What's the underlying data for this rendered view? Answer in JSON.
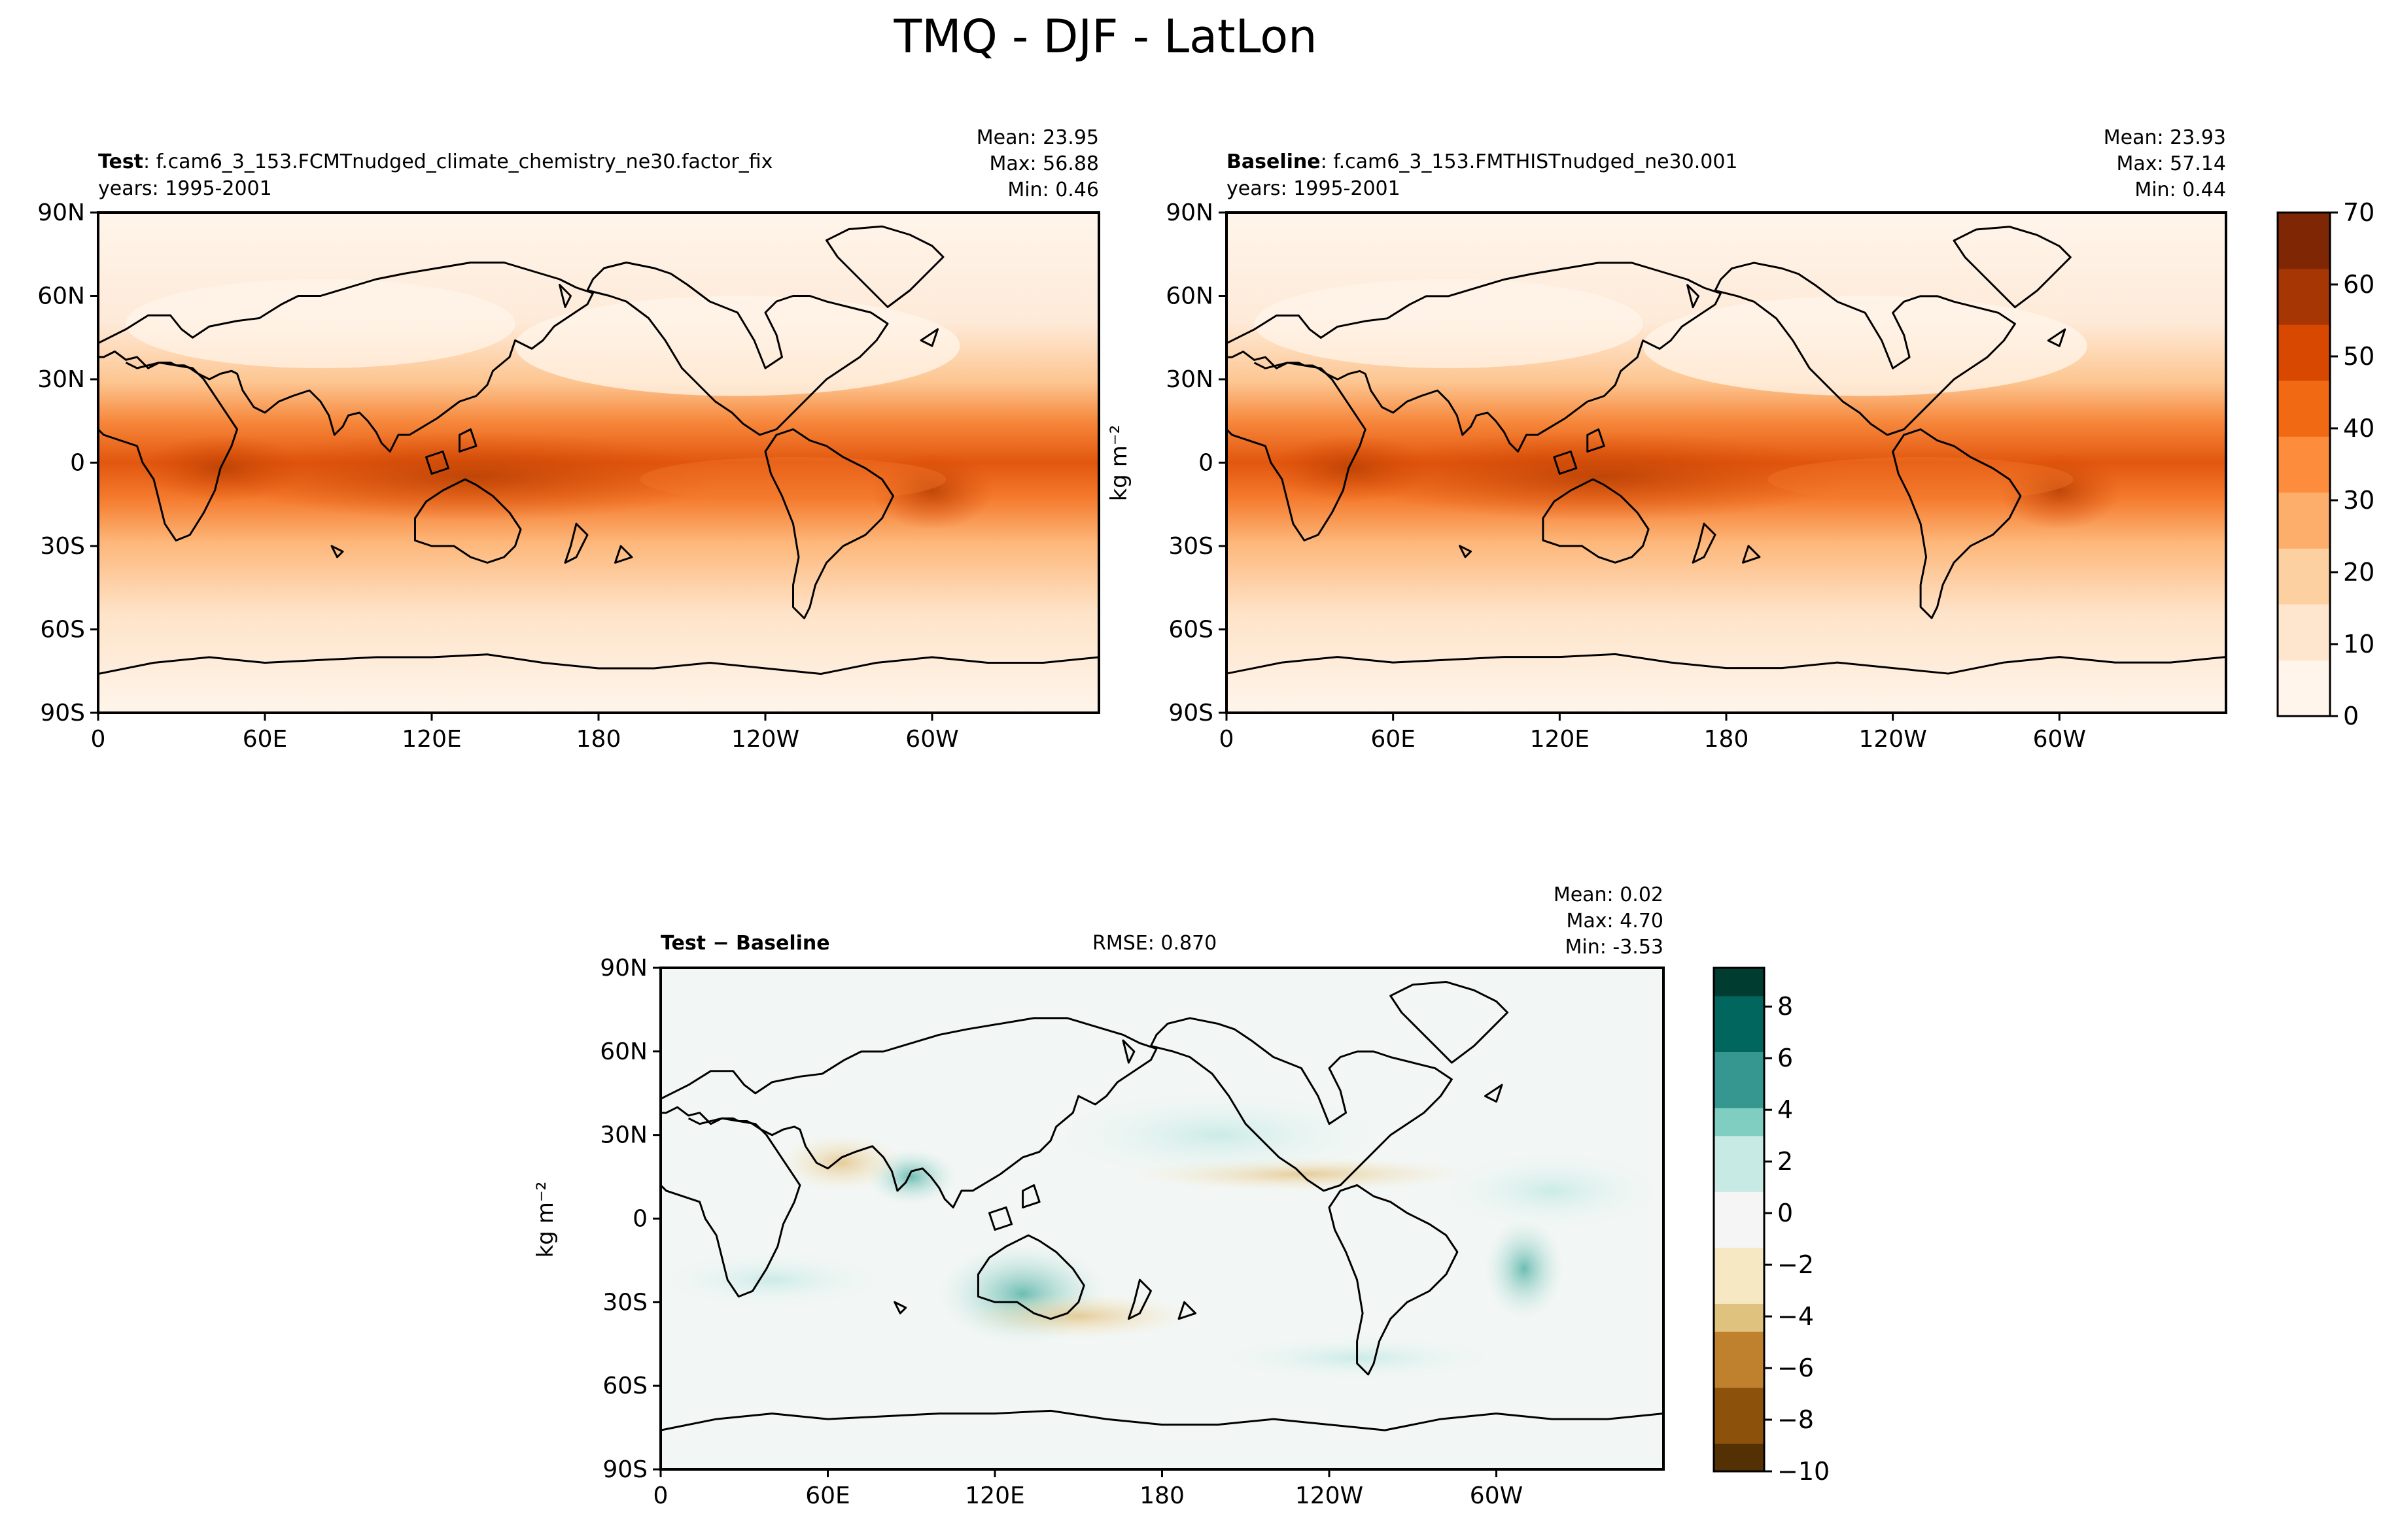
{
  "figure": {
    "title": "TMQ - DJF - LatLon"
  },
  "panels": [
    {
      "id": "test",
      "label_bold": "Test",
      "label_text": ": f.cam6_3_153.FCMTnudged_climate_chemistry_ne30.factor_fix",
      "years": "years: 1995-2001",
      "stats": {
        "mean": "Mean: 23.95",
        "max": "Max: 56.88",
        "min": "Min:  0.46"
      }
    },
    {
      "id": "baseline",
      "label_bold": "Baseline",
      "label_text": ": f.cam6_3_153.FMTHISTnudged_ne30.001",
      "years": "years: 1995-2001",
      "stats": {
        "mean": "Mean: 23.93",
        "max": "Max: 57.14",
        "min": "Min:  0.44"
      }
    },
    {
      "id": "diff",
      "label_bold": "Test − Baseline",
      "rmse": "RMSE: 0.870",
      "stats": {
        "mean": "Mean:  0.02",
        "max": "Max:  4.70",
        "min": "Min: -3.53"
      }
    }
  ],
  "colorbars": {
    "top": {
      "label": "kg m⁻²",
      "ticks": [
        "0",
        "10",
        "20",
        "30",
        "40",
        "50",
        "60",
        "70"
      ],
      "range": [
        0,
        70
      ],
      "colors": [
        "#fff5eb",
        "#fee6ce",
        "#fdd0a2",
        "#fdae6b",
        "#fd8d3c",
        "#f16913",
        "#d94801",
        "#a63603",
        "#7f2704"
      ]
    },
    "diff": {
      "label": "kg m⁻²",
      "ticks": [
        "−10",
        "−8",
        "−6",
        "−4",
        "−2",
        "0",
        "2",
        "4",
        "6",
        "8"
      ],
      "range": [
        -10,
        9.5
      ],
      "colors": [
        "#543005",
        "#8c510a",
        "#bf812d",
        "#dfc27d",
        "#f6e8c3",
        "#f5f5f5",
        "#c7eae5",
        "#80cdc1",
        "#35978f",
        "#01665e",
        "#003c30"
      ]
    }
  },
  "axes": {
    "lat_ticks": [
      "90N",
      "60N",
      "30N",
      "0",
      "30S",
      "60S",
      "90S"
    ],
    "lon_ticks": [
      "0",
      "60E",
      "120E",
      "180",
      "120W",
      "60W"
    ]
  },
  "chart_data": [
    {
      "type": "heatmap",
      "title": "Test",
      "variable": "TMQ",
      "season": "DJF",
      "units": "kg m⁻²",
      "x_ticks": [
        "0",
        "60E",
        "120E",
        "180",
        "120W",
        "60W"
      ],
      "y_ticks": [
        "90N",
        "60N",
        "30N",
        "0",
        "30S",
        "60S",
        "90S"
      ],
      "xlim": [
        0,
        360
      ],
      "ylim": [
        -90,
        90
      ],
      "colorbar_range": [
        0,
        70
      ],
      "stats": {
        "mean": 23.95,
        "max": 56.88,
        "min": 0.46
      }
    },
    {
      "type": "heatmap",
      "title": "Baseline",
      "variable": "TMQ",
      "season": "DJF",
      "units": "kg m⁻²",
      "x_ticks": [
        "0",
        "60E",
        "120E",
        "180",
        "120W",
        "60W"
      ],
      "y_ticks": [
        "90N",
        "60N",
        "30N",
        "0",
        "30S",
        "60S",
        "90S"
      ],
      "xlim": [
        0,
        360
      ],
      "ylim": [
        -90,
        90
      ],
      "colorbar_range": [
        0,
        70
      ],
      "stats": {
        "mean": 23.93,
        "max": 57.14,
        "min": 0.44
      }
    },
    {
      "type": "heatmap",
      "title": "Test − Baseline",
      "variable": "TMQ",
      "season": "DJF",
      "units": "kg m⁻²",
      "x_ticks": [
        "0",
        "60E",
        "120E",
        "180",
        "120W",
        "60W"
      ],
      "y_ticks": [
        "90N",
        "60N",
        "30N",
        "0",
        "30S",
        "60S",
        "90S"
      ],
      "xlim": [
        0,
        360
      ],
      "ylim": [
        -90,
        90
      ],
      "colorbar_range": [
        -10,
        9.5
      ],
      "rmse": 0.87,
      "stats": {
        "mean": 0.02,
        "max": 4.7,
        "min": -3.53
      }
    }
  ]
}
